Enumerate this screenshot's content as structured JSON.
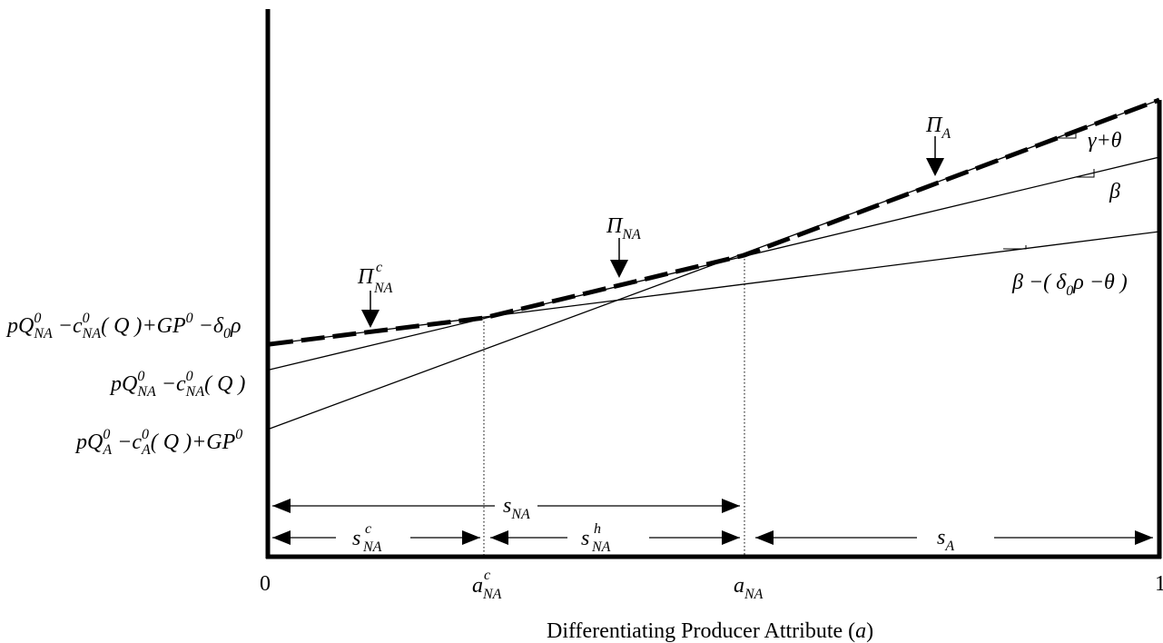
{
  "axes": {
    "x_min_label": "0",
    "x_max_label": "1",
    "x_title_main": "Differentiating Producer Attribute (",
    "x_title_var": "a",
    "x_title_close": ")"
  },
  "x_ticks": {
    "a_c_base": "a",
    "a_c_sub": "NA",
    "a_c_sup": "c",
    "a_na_base": "a",
    "a_na_sub": "NA"
  },
  "intercepts": {
    "top": {
      "p": "p",
      "Q": "Q",
      "sup1": "0",
      "sub1": "NA",
      "minus1": " −",
      "c": "c",
      "sup2": "0",
      "sub2": "NA",
      "q_arg": "( Q )",
      "plus": "+",
      "GP": "GP",
      "sup3": "0",
      "minus2": " −",
      "delta": "δ",
      "sub3": "0",
      "rho": "ρ"
    },
    "mid": {
      "p": "p",
      "Q": "Q",
      "sup1": "0",
      "sub1": "NA",
      "minus1": " −",
      "c": "c",
      "sup2": "0",
      "sub2": "NA",
      "q_arg": "( Q )"
    },
    "low": {
      "p": "p",
      "Q": "Q",
      "sup1": "0",
      "sub1": "A",
      "minus1": " −",
      "c": "c",
      "sup2": "0",
      "sub2": "A",
      "q_arg": "( Q )",
      "plus": "+",
      "GP": "GP",
      "sup3": "0"
    }
  },
  "curves": {
    "pi_a_base": "Π",
    "pi_a_sub": "A",
    "pi_na_base": "Π",
    "pi_na_sub": "NA",
    "pi_nac_base": "Π",
    "pi_nac_sub": "NA",
    "pi_nac_sup": "c"
  },
  "slopes": {
    "gamma_theta": "γ+θ",
    "beta": "β",
    "beta_expr_a": "β −( δ",
    "beta_expr_sub": "0",
    "beta_expr_b": "ρ −θ )"
  },
  "segments": {
    "s_na_base": "s",
    "s_na_sub": "NA",
    "s_nac_base": "s",
    "s_nac_sub": "NA",
    "s_nac_sup": "c",
    "s_nah_base": "s",
    "s_nah_sub": "NA",
    "s_nah_sup": "h",
    "s_a_base": "s",
    "s_a_sub": "A"
  }
}
